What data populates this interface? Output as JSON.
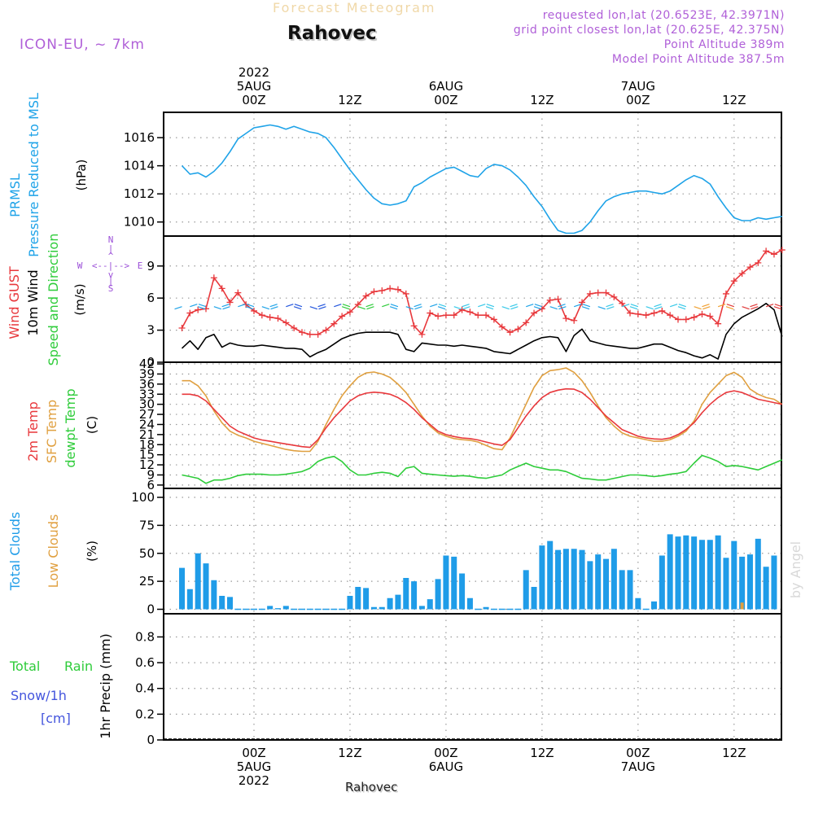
{
  "header": {
    "title_faded": "Forecast Meteogram",
    "location": "Rahovec",
    "model": "ICON-EU, ~ 7km",
    "requested": "requested lon,lat (20.6523E, 42.3971N)",
    "grid_point": "grid point closest lon,lat (20.625E, 42.375N)",
    "point_alt": "Point Altitude 389m",
    "model_alt": "Model Point Altitude 387.5m",
    "footer_location": "Rahovec",
    "watermark": "by Angel"
  },
  "time_axis": {
    "top": [
      {
        "h": 0,
        "lines": [
          "2022",
          "5AUG",
          "00Z"
        ]
      },
      {
        "h": 12,
        "lines": [
          "12Z"
        ]
      },
      {
        "h": 24,
        "lines": [
          "6AUG",
          "00Z"
        ]
      },
      {
        "h": 36,
        "lines": [
          "12Z"
        ]
      },
      {
        "h": 48,
        "lines": [
          "7AUG",
          "00Z"
        ]
      },
      {
        "h": 60,
        "lines": [
          "12Z"
        ]
      }
    ],
    "bottom": [
      {
        "h": 0,
        "lines": [
          "00Z",
          "5AUG",
          "2022"
        ]
      },
      {
        "h": 12,
        "lines": [
          "12Z"
        ]
      },
      {
        "h": 24,
        "lines": [
          "00Z",
          "6AUG"
        ]
      },
      {
        "h": 36,
        "lines": [
          "12Z"
        ]
      },
      {
        "h": 48,
        "lines": [
          "00Z",
          "7AUG"
        ]
      },
      {
        "h": 60,
        "lines": [
          "12Z"
        ]
      }
    ]
  },
  "panel_labels": {
    "prmsl": {
      "a": "PRMSL",
      "b": "Pressure Reduced to MSL",
      "unit": "(hPa)"
    },
    "wind": {
      "gust": "Wind GUST",
      "ten": "10m Wind",
      "spd": "Speed and Direction",
      "unit": "(m/s)",
      "compass_n": "N",
      "compass_s": "S",
      "compass_w": "W",
      "compass_e": "E"
    },
    "temp": {
      "t2m": "2m Temp",
      "sfc": "SFC Temp",
      "dew": "dewpt Temp",
      "unit": "(C)"
    },
    "clouds": {
      "total": "Total Clouds",
      "low": "Low Clouds",
      "unit": "(%)"
    },
    "precip": {
      "rain_a": "Total",
      "rain_b": "Rain",
      "snow_a": "Snow/1h",
      "snow_b": "[cm]",
      "axis": "1hr Precip (mm)"
    }
  },
  "colors": {
    "pressure": "#1fa3e8",
    "gust": "#e8383c",
    "wind10": "#000000",
    "speed_label": "#2ecc3a",
    "t2m": "#e8383c",
    "sfc": "#e0a040",
    "dewpt": "#2ecc3a",
    "total_clouds": "#1f9ce8",
    "low_clouds": "#e0a040",
    "rain": "#2ecc3a",
    "snow": "#4455dd",
    "model_label": "#b060d8"
  },
  "chart_data": [
    {
      "type": "line",
      "name": "prmsl",
      "title": "PRMSL Pressure Reduced to MSL",
      "ylabel": "(hPa)",
      "ylim": [
        1009,
        1017.8
      ],
      "yticks": [
        1010,
        1012,
        1014,
        1016
      ],
      "x_hours": [
        -9,
        -8,
        -7,
        -6,
        -5,
        -4,
        -3,
        -2,
        -1,
        0,
        1,
        2,
        3,
        4,
        5,
        6,
        7,
        8,
        9,
        10,
        11,
        12,
        13,
        14,
        15,
        16,
        17,
        18,
        19,
        20,
        21,
        22,
        23,
        24,
        25,
        26,
        27,
        28,
        29,
        30,
        31,
        32,
        33,
        34,
        35,
        36,
        37,
        38,
        39,
        40,
        41,
        42,
        43,
        44,
        45,
        46,
        47,
        48,
        49,
        50,
        51,
        52,
        53,
        54,
        55,
        56,
        57,
        58,
        59,
        60,
        61,
        62,
        63,
        64,
        65,
        66
      ],
      "series": [
        {
          "values": [
            1014.0,
            1013.4,
            1013.5,
            1013.2,
            1013.6,
            1014.2,
            1015.0,
            1015.9,
            1016.3,
            1016.7,
            1016.8,
            1016.9,
            1016.8,
            1016.6,
            1016.8,
            1016.6,
            1016.4,
            1016.3,
            1016.0,
            1015.3,
            1014.5,
            1013.7,
            1013.0,
            1012.3,
            1011.7,
            1011.3,
            1011.2,
            1011.3,
            1011.5,
            1012.5,
            1012.8,
            1013.2,
            1013.5,
            1013.8,
            1013.9,
            1013.6,
            1013.3,
            1013.2,
            1013.8,
            1014.1,
            1014.0,
            1013.7,
            1013.2,
            1012.6,
            1011.8,
            1011.1,
            1010.2,
            1009.4,
            1009.2,
            1009.2,
            1009.4,
            1010.0,
            1010.8,
            1011.5,
            1011.8,
            1012.0,
            1012.1,
            1012.2,
            1012.2,
            1012.1,
            1012.0,
            1012.2,
            1012.6,
            1013.0,
            1013.3,
            1013.1,
            1012.7,
            1011.8,
            1011.0,
            1010.3,
            1010.1,
            1010.1,
            1010.3,
            1010.2,
            1010.3,
            1010.4
          ]
        }
      ]
    },
    {
      "type": "line",
      "name": "wind",
      "title": "Wind GUST / 10m Wind Speed and Direction",
      "ylabel": "(m/s)",
      "ylim": [
        0,
        11.8
      ],
      "yticks": [
        0,
        3,
        6,
        9
      ],
      "x_hours": [
        -9,
        -8,
        -7,
        -6,
        -5,
        -4,
        -3,
        -2,
        -1,
        0,
        1,
        2,
        3,
        4,
        5,
        6,
        7,
        8,
        9,
        10,
        11,
        12,
        13,
        14,
        15,
        16,
        17,
        18,
        19,
        20,
        21,
        22,
        23,
        24,
        25,
        26,
        27,
        28,
        29,
        30,
        31,
        32,
        33,
        34,
        35,
        36,
        37,
        38,
        39,
        40,
        41,
        42,
        43,
        44,
        45,
        46,
        47,
        48,
        49,
        50,
        51,
        52,
        53,
        54,
        55,
        56,
        57,
        58,
        59,
        60,
        61,
        62,
        63,
        64,
        65,
        66
      ],
      "series": [
        {
          "name": "Wind GUST",
          "values": [
            3.2,
            4.6,
            4.9,
            5.0,
            7.9,
            6.9,
            5.6,
            6.5,
            5.4,
            4.8,
            4.4,
            4.2,
            4.1,
            3.7,
            3.2,
            2.8,
            2.6,
            2.6,
            3.0,
            3.6,
            4.3,
            4.7,
            5.4,
            6.2,
            6.6,
            6.7,
            6.9,
            6.8,
            6.4,
            3.4,
            2.6,
            4.6,
            4.3,
            4.4,
            4.4,
            4.9,
            4.7,
            4.4,
            4.4,
            4.0,
            3.3,
            2.8,
            3.1,
            3.7,
            4.6,
            5.0,
            5.8,
            5.9,
            4.1,
            3.9,
            5.6,
            6.4,
            6.5,
            6.5,
            6.1,
            5.5,
            4.6,
            4.5,
            4.4,
            4.6,
            4.8,
            4.4,
            4.0,
            4.0,
            4.2,
            4.5,
            4.3,
            3.6,
            6.4,
            7.6,
            8.3,
            8.9,
            9.3,
            10.4,
            10.1,
            10.5
          ]
        },
        {
          "name": "10m Wind",
          "values": [
            1.3,
            2.0,
            1.2,
            2.3,
            2.6,
            1.4,
            1.8,
            1.6,
            1.5,
            1.5,
            1.6,
            1.5,
            1.4,
            1.3,
            1.3,
            1.2,
            0.5,
            0.9,
            1.2,
            1.7,
            2.2,
            2.5,
            2.7,
            2.8,
            2.8,
            2.8,
            2.8,
            2.6,
            1.2,
            1.0,
            1.8,
            1.7,
            1.6,
            1.6,
            1.5,
            1.6,
            1.5,
            1.4,
            1.3,
            1.0,
            0.9,
            0.8,
            1.2,
            1.6,
            2.0,
            2.3,
            2.4,
            2.3,
            1.0,
            2.5,
            3.1,
            2.0,
            1.8,
            1.6,
            1.5,
            1.4,
            1.3,
            1.3,
            1.5,
            1.7,
            1.7,
            1.4,
            1.1,
            0.9,
            0.6,
            0.4,
            0.7,
            0.3,
            2.6,
            3.6,
            4.2,
            4.6,
            5.0,
            5.5,
            4.9,
            2.4
          ]
        }
      ]
    },
    {
      "type": "line",
      "name": "temperature",
      "title": "2m Temp / SFC Temp / dewpt Temp",
      "ylabel": "(C)",
      "ylim": [
        5,
        42.5
      ],
      "yticks": [
        6,
        9,
        12,
        15,
        18,
        21,
        24,
        27,
        30,
        33,
        36,
        39,
        42
      ],
      "x_hours": [
        -9,
        -8,
        -7,
        -6,
        -5,
        -4,
        -3,
        -2,
        -1,
        0,
        1,
        2,
        3,
        4,
        5,
        6,
        7,
        8,
        9,
        10,
        11,
        12,
        13,
        14,
        15,
        16,
        17,
        18,
        19,
        20,
        21,
        22,
        23,
        24,
        25,
        26,
        27,
        28,
        29,
        30,
        31,
        32,
        33,
        34,
        35,
        36,
        37,
        38,
        39,
        40,
        41,
        42,
        43,
        44,
        45,
        46,
        47,
        48,
        49,
        50,
        51,
        52,
        53,
        54,
        55,
        56,
        57,
        58,
        59,
        60,
        61,
        62,
        63,
        64,
        65,
        66
      ],
      "series": [
        {
          "name": "2m Temp",
          "values": [
            33.0,
            33.0,
            32.5,
            31.0,
            28.5,
            26.0,
            23.5,
            22.0,
            21.0,
            20.0,
            19.4,
            19.0,
            18.6,
            18.2,
            17.8,
            17.4,
            17.2,
            19.5,
            23.0,
            26.0,
            28.5,
            31.0,
            32.5,
            33.3,
            33.6,
            33.4,
            33.0,
            32.0,
            30.5,
            28.5,
            26.0,
            24.0,
            22.0,
            21.0,
            20.4,
            20.0,
            19.8,
            19.4,
            18.8,
            18.2,
            17.8,
            19.5,
            23.0,
            26.5,
            29.5,
            32.0,
            33.5,
            34.2,
            34.6,
            34.5,
            33.5,
            31.5,
            29.0,
            26.5,
            24.5,
            22.5,
            21.5,
            20.5,
            20.0,
            19.7,
            19.6,
            20.0,
            21.0,
            22.5,
            24.5,
            27.5,
            30.0,
            32.0,
            33.5,
            34.0,
            33.5,
            32.5,
            31.5,
            31.0,
            30.5,
            30.0
          ]
        },
        {
          "name": "SFC Temp",
          "values": [
            37.0,
            37.0,
            35.5,
            32.5,
            28.0,
            24.5,
            22.0,
            20.8,
            20.0,
            19.0,
            18.4,
            17.8,
            17.2,
            16.6,
            16.2,
            16.0,
            16.0,
            19.0,
            24.0,
            28.5,
            32.5,
            35.5,
            38.0,
            39.3,
            39.6,
            39.0,
            38.0,
            36.0,
            33.5,
            30.0,
            26.5,
            23.5,
            21.5,
            20.5,
            19.8,
            19.5,
            19.3,
            18.8,
            17.8,
            16.8,
            16.5,
            20.0,
            25.0,
            30.0,
            35.0,
            38.5,
            40.0,
            40.3,
            40.8,
            39.5,
            37.0,
            33.5,
            29.5,
            26.0,
            23.5,
            21.5,
            20.5,
            20.0,
            19.5,
            19.0,
            19.0,
            19.5,
            20.5,
            22.0,
            25.0,
            30.0,
            33.5,
            36.0,
            38.5,
            39.5,
            38.0,
            34.5,
            33.0,
            32.0,
            31.5,
            30.0
          ]
        },
        {
          "name": "dewpt Temp",
          "values": [
            9.0,
            8.5,
            8.0,
            6.5,
            7.5,
            7.5,
            8.0,
            8.8,
            9.2,
            9.2,
            9.2,
            9.0,
            9.0,
            9.2,
            9.6,
            10.0,
            11.0,
            13.0,
            14.0,
            14.5,
            13.0,
            10.5,
            9.0,
            9.0,
            9.5,
            9.8,
            9.5,
            8.5,
            11.0,
            11.5,
            9.5,
            9.2,
            9.0,
            8.8,
            8.6,
            8.8,
            8.6,
            8.2,
            8.0,
            8.5,
            9.0,
            10.5,
            11.5,
            12.5,
            11.5,
            11.0,
            10.5,
            10.5,
            10.0,
            9.0,
            8.0,
            7.8,
            7.5,
            7.5,
            8.0,
            8.5,
            9.0,
            9.0,
            8.8,
            8.5,
            8.8,
            9.2,
            9.5,
            10.0,
            12.5,
            14.8,
            14.0,
            13.0,
            11.5,
            11.8,
            11.5,
            11.0,
            10.5,
            11.5,
            12.5,
            13.5
          ]
        }
      ]
    },
    {
      "type": "bar",
      "name": "clouds",
      "title": "Total Clouds / Low Clouds",
      "ylabel": "(%)",
      "ylim": [
        -4,
        108
      ],
      "yticks": [
        0,
        25,
        50,
        75,
        100
      ],
      "x_hours": [
        -9,
        -8,
        -7,
        -6,
        -5,
        -4,
        -3,
        -2,
        -1,
        0,
        1,
        2,
        3,
        4,
        5,
        6,
        7,
        8,
        9,
        10,
        11,
        12,
        13,
        14,
        15,
        16,
        17,
        18,
        19,
        20,
        21,
        22,
        23,
        24,
        25,
        26,
        27,
        28,
        29,
        30,
        31,
        32,
        33,
        34,
        35,
        36,
        37,
        38,
        39,
        40,
        41,
        42,
        43,
        44,
        45,
        46,
        47,
        48,
        49,
        50,
        51,
        52,
        53,
        54,
        55,
        56,
        57,
        58,
        59,
        60,
        61,
        62,
        63,
        64,
        65,
        66
      ],
      "series": [
        {
          "name": "Total Clouds",
          "values": [
            37,
            18,
            50,
            41,
            26,
            12,
            11,
            0,
            0,
            0,
            0,
            3,
            1,
            3,
            0,
            0,
            0,
            0,
            0,
            0,
            0,
            12,
            20,
            19,
            2,
            2,
            10,
            13,
            28,
            25,
            3,
            9,
            27,
            48,
            47,
            32,
            10,
            0,
            2,
            0,
            0,
            0,
            0,
            35,
            20,
            57,
            61,
            53,
            54,
            54,
            53,
            43,
            49,
            45,
            54,
            35,
            35,
            10,
            0,
            7,
            48,
            67,
            65,
            66,
            65,
            62,
            62,
            66,
            46,
            61,
            47,
            49,
            63,
            38,
            48,
            0
          ]
        },
        {
          "name": "Low Clouds",
          "values": [
            0,
            0,
            0,
            0,
            0,
            0,
            0,
            0,
            0,
            0,
            0,
            0,
            0,
            0,
            0,
            0,
            0,
            0,
            0,
            0,
            0,
            0,
            0,
            0,
            0,
            0,
            0,
            0,
            0,
            0,
            0,
            0,
            0,
            0,
            0,
            0,
            0,
            0,
            0,
            0,
            0,
            0,
            0,
            0,
            0,
            0,
            0,
            0,
            0,
            0,
            0,
            0,
            0,
            0,
            0,
            0,
            0,
            0,
            0,
            0,
            0,
            0,
            0,
            0,
            0,
            0,
            0,
            0,
            0,
            0,
            6,
            0,
            0,
            0,
            0,
            0
          ]
        }
      ]
    },
    {
      "type": "bar",
      "name": "precip",
      "title": "1hr Precip (mm)",
      "ylabel": "1hr Precip (mm)",
      "ylim": [
        0,
        0.98
      ],
      "yticks": [
        0,
        0.2,
        0.4,
        0.6,
        0.8
      ],
      "series": [
        {
          "name": "Total Rain",
          "values": []
        },
        {
          "name": "Snow/1h",
          "values": []
        }
      ]
    }
  ]
}
